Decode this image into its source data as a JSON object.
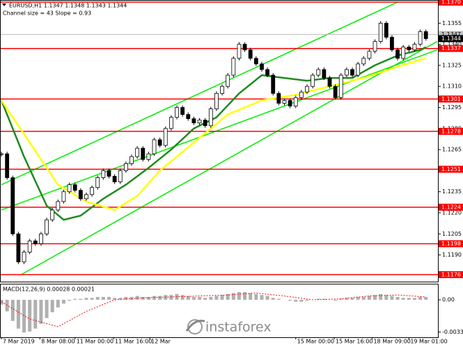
{
  "chart_data": {
    "type": "candlestick",
    "symbol_line": "EURUSD,H1  1.1347 1.1348 1.1343 1.1344",
    "indicator_label": "Channel size = 43 Slope = 0.93",
    "xlim": [
      -0.25,
      77.25
    ],
    "ylim": [
      1.1171,
      1.13715
    ],
    "yticks": [
      {
        "value": 1.119,
        "label": "1.1190"
      },
      1.1205,
      {
        "value": 1.122,
        "label": "1.1220"
      },
      1.1235,
      {
        "value": 1.125,
        "label": "1.1250"
      },
      1.1265,
      {
        "value": 1.128,
        "label": "1.1280"
      },
      1.1295,
      {
        "value": 1.131,
        "label": "1.1310"
      },
      1.1325,
      {
        "value": 1.134,
        "label": "1.1340"
      },
      1.1355
    ],
    "closes": [
      1.1262,
      1.1245,
      1.1205,
      1.1185,
      1.1192,
      1.12,
      1.1198,
      1.1205,
      1.1215,
      1.1222,
      1.1228,
      1.1235,
      1.124,
      1.1236,
      1.123,
      1.1233,
      1.1238,
      1.1245,
      1.125,
      1.1246,
      1.1242,
      1.125,
      1.1255,
      1.126,
      1.1266,
      1.1258,
      1.1262,
      1.1272,
      1.1268,
      1.128,
      1.1288,
      1.1295,
      1.129,
      1.1287,
      1.1284,
      1.1286,
      1.1282,
      1.1294,
      1.1305,
      1.131,
      1.1318,
      1.133,
      1.134,
      1.1336,
      1.133,
      1.1326,
      1.1322,
      1.1318,
      1.1305,
      1.1298,
      1.13,
      1.1296,
      1.1302,
      1.1306,
      1.131,
      1.1318,
      1.1322,
      1.1316,
      1.131,
      1.1302,
      1.1318,
      1.1322,
      1.1318,
      1.1326,
      1.133,
      1.1335,
      1.1342,
      1.1355,
      1.1345,
      1.1336,
      1.133,
      1.1338,
      1.1336,
      1.134,
      1.1349,
      1.1344
    ],
    "levels": [
      {
        "value": 1.137,
        "label": "1.1370"
      },
      1.1337,
      1.1301,
      1.1278,
      1.1251,
      1.1224,
      1.1198,
      1.1176
    ],
    "level_color": "#ff0000",
    "ask": 1.1347,
    "bid": 1.1344,
    "moving_averages": [
      {
        "color": "#1f8a1f",
        "x": [
          0,
          4,
          8,
          11,
          14,
          18,
          22,
          26,
          30,
          34,
          38,
          42,
          46,
          50,
          54,
          58,
          62,
          66,
          70,
          74,
          75
        ],
        "values": [
          1.13,
          1.126,
          1.1225,
          1.1215,
          1.1218,
          1.123,
          1.124,
          1.1252,
          1.1265,
          1.128,
          1.1288,
          1.1305,
          1.1318,
          1.1316,
          1.1314,
          1.1316,
          1.1316,
          1.1325,
          1.1332,
          1.1336,
          1.1338
        ]
      },
      {
        "color": "#ffff00",
        "x": [
          0,
          5,
          10,
          15,
          20,
          24,
          28,
          34,
          40,
          46,
          52,
          58,
          64,
          70,
          75
        ],
        "values": [
          1.13,
          1.127,
          1.124,
          1.1228,
          1.1222,
          1.1232,
          1.125,
          1.127,
          1.129,
          1.13,
          1.1304,
          1.131,
          1.1316,
          1.1324,
          1.133
        ]
      }
    ],
    "channel_lines": [
      {
        "color": "#00ee00",
        "x": [
          0,
          70
        ],
        "values": [
          1.124,
          1.137
        ]
      },
      {
        "color": "#00ee00",
        "x": [
          0,
          77
        ],
        "values": [
          1.1222,
          1.1336
        ]
      },
      {
        "color": "#00ee00",
        "x": [
          3.5,
          77
        ],
        "values": [
          1.1176,
          1.1342
        ]
      }
    ],
    "time_labels": [
      {
        "x": 0,
        "label": "7 Mar 2019"
      },
      {
        "x": 6.8,
        "label": "8 Mar 08:00"
      },
      {
        "x": 13,
        "label": "11 Mar 00:00"
      },
      {
        "x": 19.8,
        "label": "11 Mar 16:00"
      },
      {
        "x": 26.2,
        "label": "12 Mar"
      },
      {
        "x": 52,
        "label": "15 Mar 00:00"
      },
      {
        "x": 58.8,
        "label": "15 Mar 16:00"
      },
      {
        "x": 65.5,
        "label": "18 Mar 09:00"
      },
      {
        "x": 72,
        "label": "19 Mar 01:00"
      }
    ],
    "macd": {
      "label": "MACD(12,26,9) 0.00028 0.00021",
      "ylim": [
        -0.0039,
        0.0016
      ],
      "yticks": [
        {
          "value": 0,
          "label": "0.00"
        },
        -0.00335
      ],
      "histogram": [
        -0.0005,
        -0.0012,
        -0.0022,
        -0.003,
        -0.0034,
        -0.0033,
        -0.003,
        -0.0025,
        -0.0019,
        -0.0013,
        -0.0008,
        -0.0004,
        -0.0001,
        0.0001,
        0.0001,
        0.0002,
        0.0002,
        0.0003,
        0.0003,
        0.0003,
        0.0002,
        0.0002,
        0.0003,
        0.0003,
        0.0004,
        0.0003,
        0.0003,
        0.0004,
        0.0004,
        0.0005,
        0.0005,
        0.0006,
        0.0005,
        0.0004,
        0.0003,
        0.0003,
        0.0002,
        0.0003,
        0.0004,
        0.0005,
        0.0006,
        0.0007,
        0.0008,
        0.0008,
        0.0007,
        0.0006,
        0.0005,
        0.0004,
        0.0002,
        0.0001,
        0,
        -0.0001,
        -0.0002,
        -0.0002,
        -0.0001,
        0,
        0.0001,
        0.0001,
        0,
        -0.0001,
        0.0001,
        0.0002,
        0.0002,
        0.0003,
        0.0003,
        0.0004,
        0.0005,
        0.0006,
        0.0005,
        0.0004,
        0.0003,
        0.0002,
        0.0002,
        0.0002,
        0.0003,
        0.0003
      ],
      "histogram_color": "#b0b0b0",
      "signal_x": [
        0,
        5,
        10,
        15,
        20,
        25,
        30,
        35,
        40,
        45,
        50,
        55,
        60,
        65,
        70,
        75
      ],
      "signal": [
        -0.0002,
        -0.002,
        -0.0028,
        -0.0012,
        0,
        0.0002,
        0.0003,
        0.0004,
        0.0005,
        0.0007,
        0.0004,
        0,
        0.0001,
        0.0004,
        0.0005,
        0.0003
      ],
      "signal_color": "#ff0000"
    },
    "watermark": "instaforex"
  }
}
